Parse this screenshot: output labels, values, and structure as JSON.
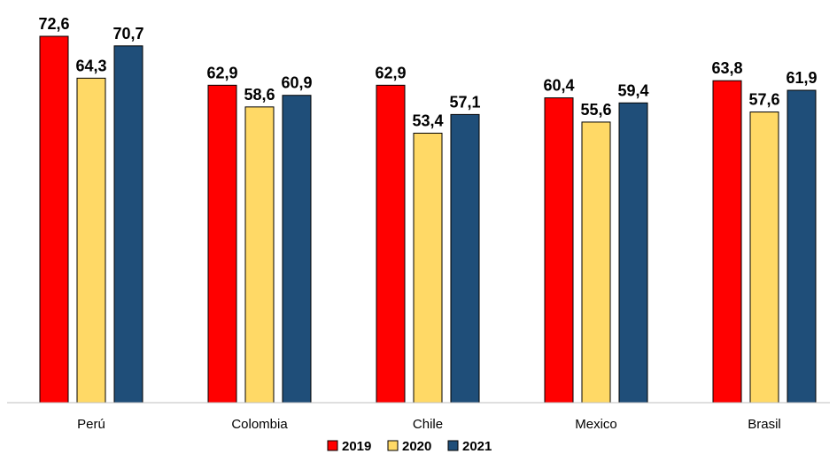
{
  "chart_data": {
    "type": "bar",
    "title": "",
    "xlabel": "",
    "ylabel": "",
    "categories": [
      "Perú",
      "Colombia",
      "Chile",
      "Mexico",
      "Brasil"
    ],
    "series": [
      {
        "name": "2019",
        "color": "#ff0000",
        "values": [
          72.6,
          62.9,
          62.9,
          60.4,
          63.8
        ]
      },
      {
        "name": "2020",
        "color": "#ffd966",
        "values": [
          64.3,
          58.6,
          53.4,
          55.6,
          57.6
        ]
      },
      {
        "name": "2021",
        "color": "#1f4e79",
        "values": [
          70.7,
          60.9,
          57.1,
          59.4,
          61.9
        ]
      }
    ],
    "value_labels": [
      [
        "72,6",
        "62,9",
        "62,9",
        "60,4",
        "63,8"
      ],
      [
        "64,3",
        "58,6",
        "53,4",
        "55,6",
        "57,6"
      ],
      [
        "70,7",
        "60,9",
        "57,1",
        "59,4",
        "61,9"
      ]
    ],
    "ylim": [
      0,
      80
    ],
    "grid": false,
    "legend_position": "bottom"
  }
}
